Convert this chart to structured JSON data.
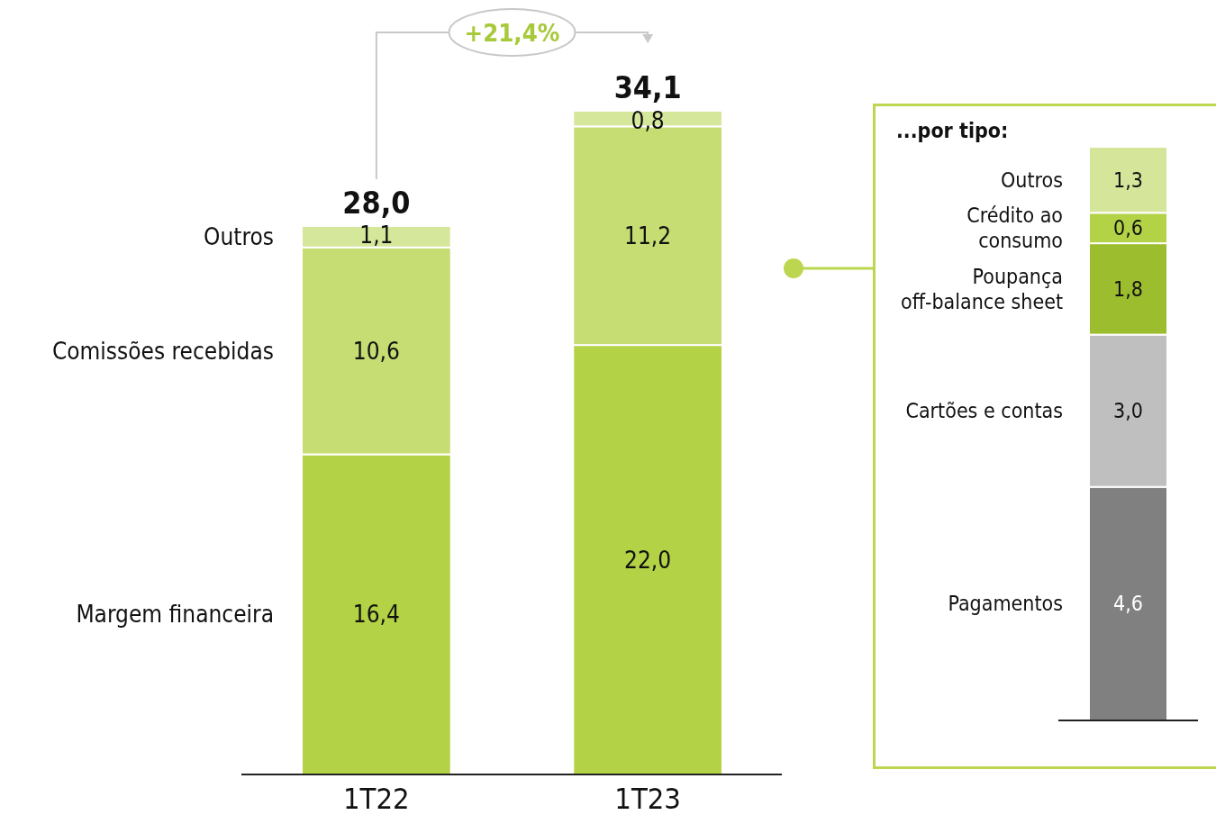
{
  "chart_data": [
    {
      "type": "bar",
      "stacked": true,
      "categories": [
        "1T22",
        "1T23"
      ],
      "series": [
        {
          "name": "Margem financeira",
          "color": "#b3d245",
          "values": [
            16.4,
            22.0
          ],
          "value_labels": [
            "16,4",
            "22,0"
          ]
        },
        {
          "name": "Comissões recebidas",
          "color": "#c5dd72",
          "values": [
            10.6,
            11.2
          ],
          "value_labels": [
            "10,6",
            "11,2"
          ]
        },
        {
          "name": "Outros",
          "color": "#d5e79a",
          "values": [
            1.1,
            0.8
          ],
          "value_labels": [
            "1,1",
            "0,8"
          ]
        }
      ],
      "totals": [
        "28,0",
        "34,1"
      ],
      "annotations": [
        "+21,4%"
      ]
    },
    {
      "type": "bar",
      "stacked": true,
      "title": "...por tipo:",
      "categories": [
        null
      ],
      "series": [
        {
          "name": "Pagamentos",
          "color": "#808080",
          "values": [
            4.6
          ],
          "value_labels": [
            "4,6"
          ]
        },
        {
          "name": "Cartões e contas",
          "color": "#bfbfbf",
          "values": [
            3.0
          ],
          "value_labels": [
            "3,0"
          ]
        },
        {
          "name": "Poupança off-balance sheet",
          "color": "#9bbd2e",
          "values": [
            1.8
          ],
          "value_labels": [
            "1,8"
          ]
        },
        {
          "name": "Crédito ao consumo",
          "color": "#b3d245",
          "values": [
            0.6
          ],
          "value_labels": [
            "0,6"
          ]
        },
        {
          "name": "Outros",
          "color": "#d5e69a",
          "values": [
            1.3
          ],
          "value_labels": [
            "1,3"
          ]
        }
      ]
    }
  ]
}
